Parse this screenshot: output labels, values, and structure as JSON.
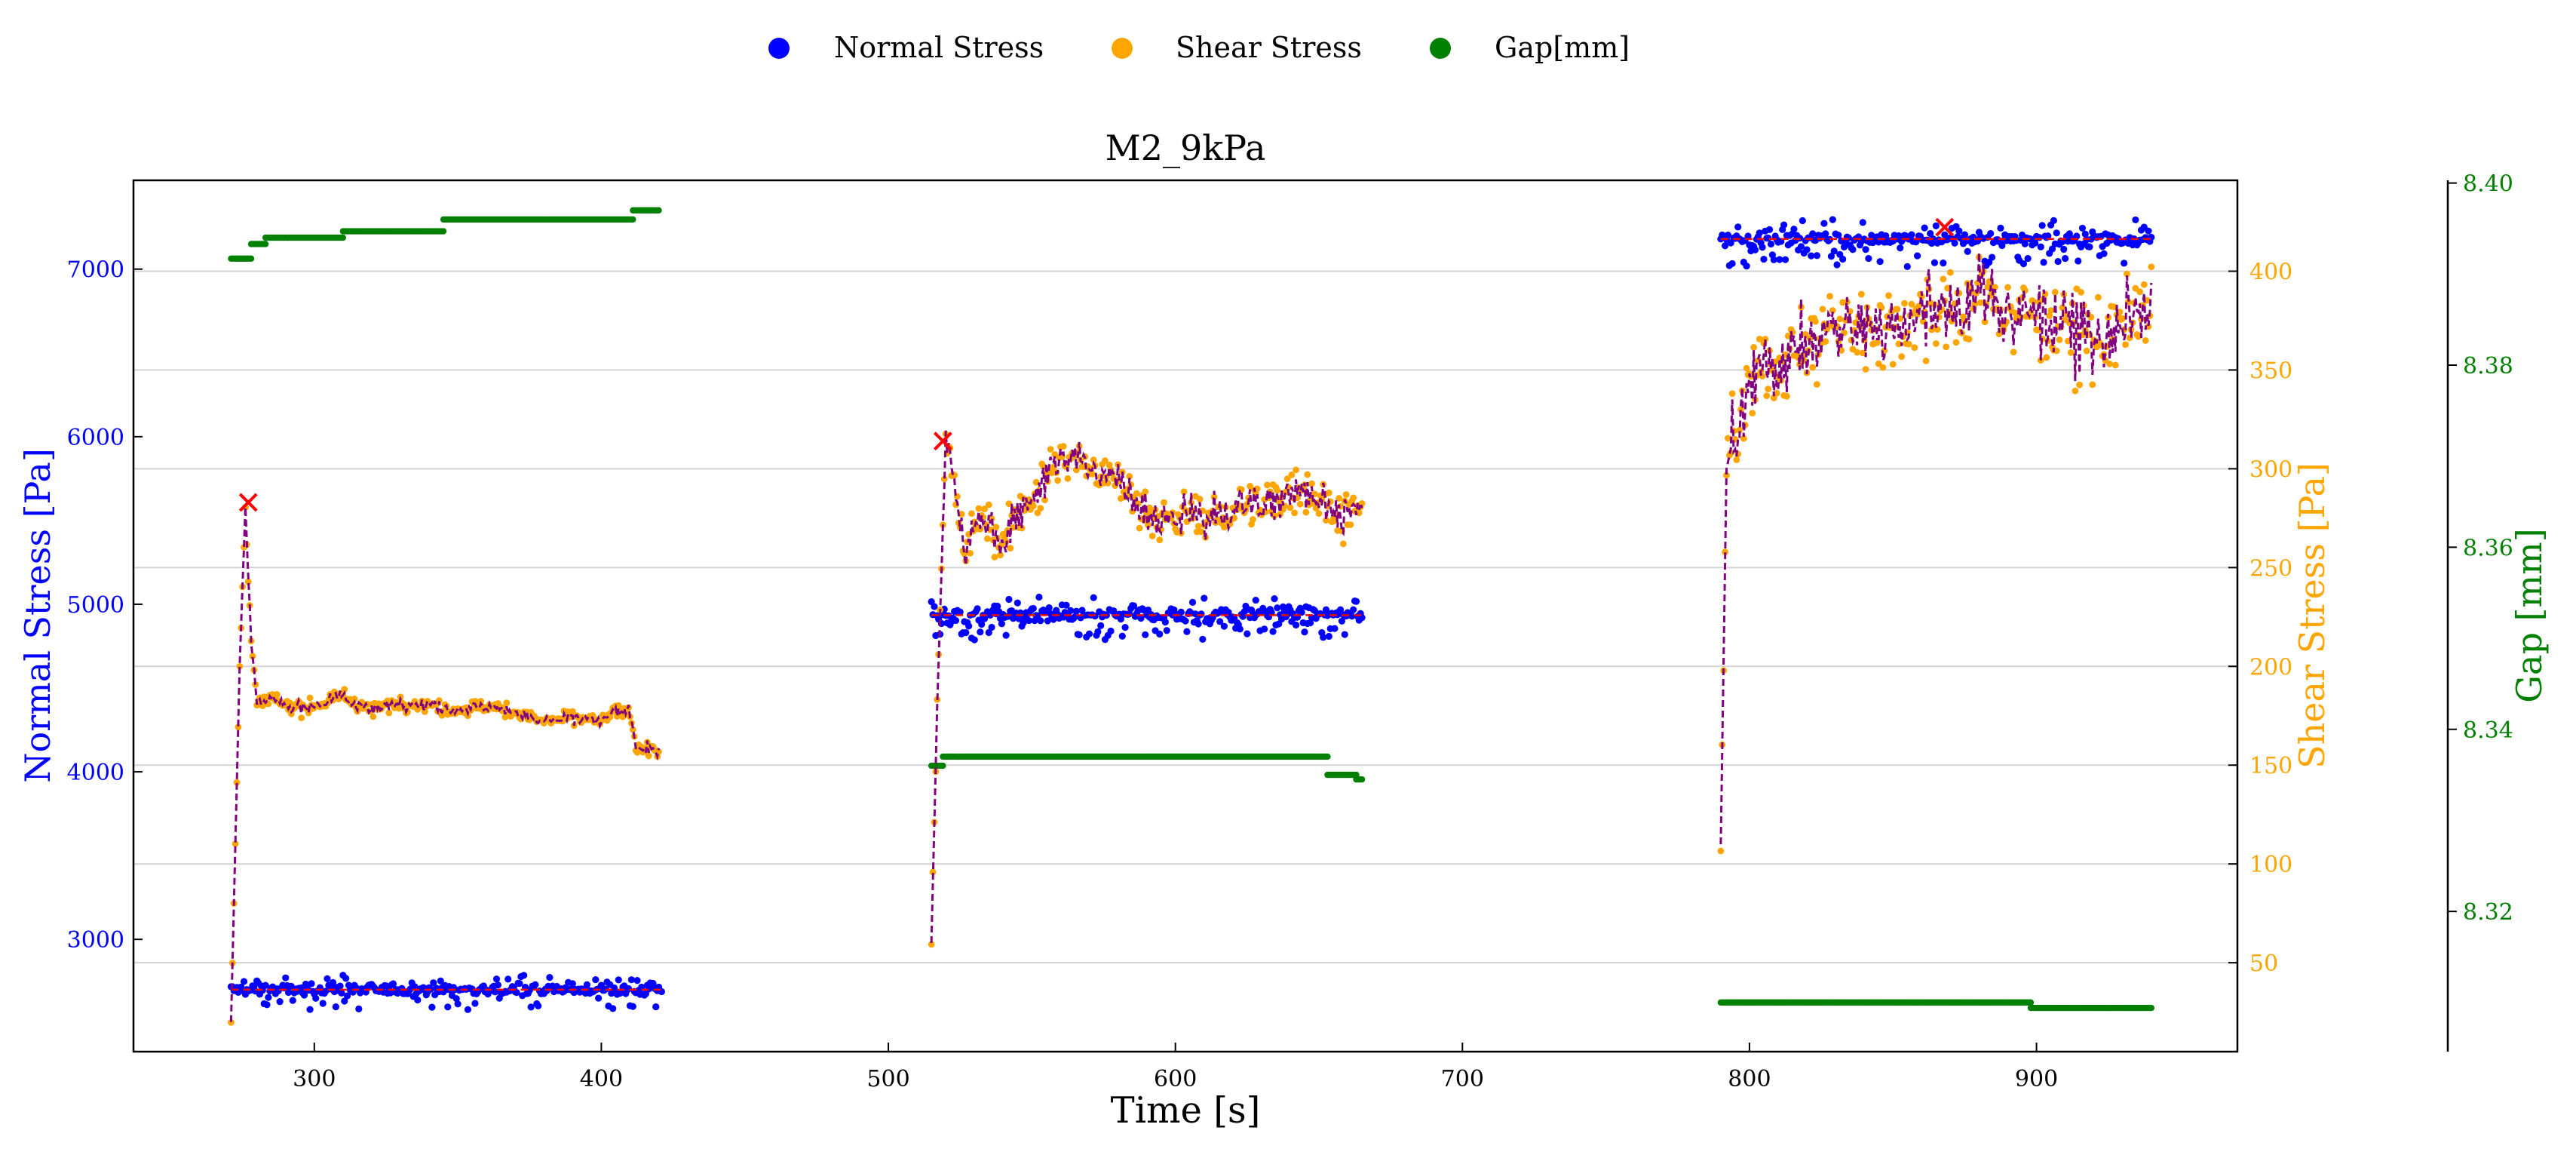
{
  "colors": {
    "normal": "#0000ff",
    "shear": "#ffa500",
    "gap": "#008000",
    "fit_line": "#800080",
    "marker": "#ff0000",
    "grid": "#d3d3d3",
    "axes": "#000000"
  },
  "legend": {
    "placement": "top-center",
    "items": [
      {
        "label": "Normal Stress",
        "color": "#0000ff"
      },
      {
        "label": "Shear Stress",
        "color": "#ffa500"
      },
      {
        "label": "Gap[mm]",
        "color": "#008000"
      }
    ]
  },
  "chart_data": {
    "type": "scatter",
    "title": "M2_9kPa",
    "xlabel": "Time [s]",
    "ylabel_left": "Normal Stress [Pa]",
    "ylabel_right": "Shear Stress [Pa]",
    "ylabel_far_right": "Gap [mm]",
    "grid": "horizontal",
    "xlim": [
      237,
      970
    ],
    "ylim_left": [
      2330,
      7530
    ],
    "ylim_right": [
      5,
      446
    ],
    "ylim_gap": [
      8.3046,
      8.4003
    ],
    "x_ticks": [
      300,
      400,
      500,
      600,
      700,
      800,
      900
    ],
    "y_left_ticks": [
      3000,
      4000,
      5000,
      6000,
      7000
    ],
    "y_right_ticks": [
      50,
      100,
      150,
      200,
      250,
      300,
      350,
      400
    ],
    "y_gap_ticks": [
      "8.32",
      "8.34",
      "8.36",
      "8.38",
      "8.40"
    ],
    "series": [
      {
        "name": "Normal Stress",
        "axis": "left",
        "segments": [
          {
            "x_range": [
              271,
              421
            ],
            "mean": 2700,
            "spread": 35,
            "outliers": 90
          },
          {
            "x_range": [
              515,
              665
            ],
            "mean": 4935,
            "spread": 50,
            "outliers": 100
          },
          {
            "x_range": [
              790,
              940
            ],
            "mean": 7180,
            "spread": 45,
            "outliers": 120
          }
        ]
      },
      {
        "name": "Shear Stress",
        "axis": "right",
        "segments": [
          {
            "x": [
              271,
              274,
              276,
              278,
              280,
              285,
              290,
              300,
              310,
              320,
              330,
              340,
              350,
              360,
              370,
              380,
              390,
              400,
              405,
              410,
              412,
              415,
              420
            ],
            "y": [
              20,
              200,
              280,
              214,
              180,
              184,
              180,
              180,
              185,
              178,
              182,
              180,
              178,
              180,
              177,
              172,
              174,
              172,
              177,
              177,
              160,
              158,
              158
            ]
          },
          {
            "x": [
              515,
              517,
              520,
              523,
              527,
              530,
              535,
              540,
              545,
              550,
              555,
              560,
              565,
              570,
              575,
              580,
              585,
              590,
              595,
              600,
              605,
              610,
              615,
              620,
              625,
              630,
              635,
              640,
              645,
              650,
              655,
              660,
              665
            ],
            "y": [
              60,
              180,
              315,
              290,
              255,
              275,
              270,
              265,
              280,
              285,
              295,
              305,
              305,
              300,
              295,
              295,
              285,
              280,
              275,
              270,
              280,
              275,
              275,
              280,
              282,
              280,
              285,
              290,
              292,
              285,
              280,
              275,
              280
            ]
          },
          {
            "x": [
              790,
              792,
              795,
              800,
              805,
              810,
              815,
              820,
              830,
              840,
              850,
              860,
              870,
              875,
              880,
              890,
              900,
              910,
              920,
              930,
              935,
              940
            ],
            "y": [
              110,
              300,
              320,
              340,
              350,
              355,
              360,
              360,
              375,
              370,
              372,
              380,
              378,
              380,
              388,
              380,
              378,
              370,
              365,
              372,
              378,
              380
            ]
          }
        ]
      },
      {
        "name": "Gap[mm]",
        "axis": "gap",
        "segments": [
          {
            "steps": [
              [
                271,
                278,
                8.3917
              ],
              [
                278,
                283,
                8.3933
              ],
              [
                283,
                310,
                8.394
              ],
              [
                310,
                345,
                8.3947
              ],
              [
                345,
                411,
                8.396
              ],
              [
                411,
                420,
                8.397
              ]
            ]
          },
          {
            "steps": [
              [
                515,
                519,
                8.336
              ],
              [
                519,
                653,
                8.337
              ],
              [
                653,
                663,
                8.335
              ],
              [
                663,
                665,
                8.3345
              ]
            ]
          },
          {
            "steps": [
              [
                790,
                898,
                8.31
              ],
              [
                898,
                940,
                8.3094
              ]
            ]
          }
        ]
      }
    ],
    "max_markers": [
      {
        "x": 277,
        "y": 283,
        "axis": "right"
      },
      {
        "x": 519,
        "y": 314,
        "axis": "right"
      },
      {
        "x": 868,
        "y": 7250,
        "axis": "left"
      }
    ]
  }
}
